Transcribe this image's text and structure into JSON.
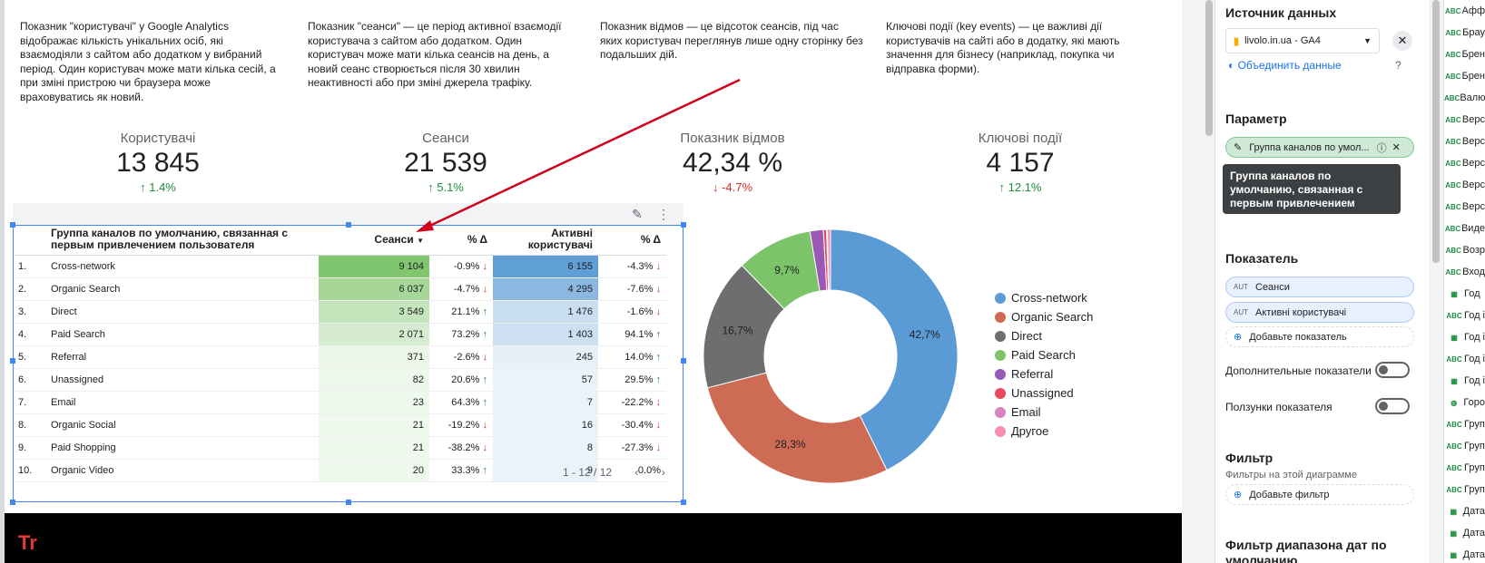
{
  "descriptions": [
    "Показник \"користувачі\" у Google Analytics відображає кількість унікальних осіб, які взаємодіяли з сайтом або додатком у вибраний період. Один користувач може мати кілька сесій, а при зміні пристрою чи браузера може враховуватись як новий.",
    "Показник \"сеанси\" — це період активної взаємодії користувача з сайтом або додатком. Один користувач може мати кілька сеансів на день, а новий сеанс створюється після 30 хвилин неактивності або при зміні джерела трафіку.",
    "Показник відмов — це відсоток сеансів, під час яких користувач переглянув лише одну сторінку без подальших дій.",
    "Ключові події (key events) — це важливі дії користувачів на сайті або в додатку, які мають значення для бізнесу (наприклад, покупка чи відправка форми)."
  ],
  "kpis": [
    {
      "label": "Користувачі",
      "value": "13 845",
      "delta": "1.4%",
      "dir": "up"
    },
    {
      "label": "Сеанси",
      "value": "21 539",
      "delta": "5.1%",
      "dir": "up"
    },
    {
      "label": "Показник відмов",
      "value": "42,34 %",
      "delta": "-4.7%",
      "dir": "down"
    },
    {
      "label": "Ключові події",
      "value": "4 157",
      "delta": "12.1%",
      "dir": "up"
    }
  ],
  "table": {
    "headers": [
      "Группа каналов по умолчанию, связанная с первым привлечением пользователя",
      "Сеанси",
      "% Δ",
      "Активні користувачі",
      "% Δ"
    ],
    "rows": [
      {
        "n": "1.",
        "channel": "Cross-network",
        "sessions": "9 104",
        "sd": "-0.9%",
        "sdir": "down",
        "users": "6 155",
        "ud": "-4.3%",
        "udir": "down",
        "s": 1.0,
        "u": 1.0
      },
      {
        "n": "2.",
        "channel": "Organic Search",
        "sessions": "6 037",
        "sd": "-4.7%",
        "sdir": "down",
        "users": "4 295",
        "ud": "-7.6%",
        "udir": "down",
        "s": 0.66,
        "u": 0.7
      },
      {
        "n": "3.",
        "channel": "Direct",
        "sessions": "3 549",
        "sd": "21.1%",
        "sdir": "up",
        "users": "1 476",
        "ud": "-1.6%",
        "udir": "down",
        "s": 0.39,
        "u": 0.24
      },
      {
        "n": "4.",
        "channel": "Paid Search",
        "sessions": "2 071",
        "sd": "73.2%",
        "sdir": "up",
        "users": "1 403",
        "ud": "94.1%",
        "udir": "up",
        "s": 0.23,
        "u": 0.23
      },
      {
        "n": "5.",
        "channel": "Referral",
        "sessions": "371",
        "sd": "-2.6%",
        "sdir": "down",
        "users": "245",
        "ud": "14.0%",
        "udir": "up",
        "s": 0.04,
        "u": 0.04
      },
      {
        "n": "6.",
        "channel": "Unassigned",
        "sessions": "82",
        "sd": "20.6%",
        "sdir": "up",
        "users": "57",
        "ud": "29.5%",
        "udir": "up",
        "s": 0.01,
        "u": 0.01
      },
      {
        "n": "7.",
        "channel": "Email",
        "sessions": "23",
        "sd": "64.3%",
        "sdir": "up",
        "users": "7",
        "ud": "-22.2%",
        "udir": "down",
        "s": 0.0,
        "u": 0.0
      },
      {
        "n": "8.",
        "channel": "Organic Social",
        "sessions": "21",
        "sd": "-19.2%",
        "sdir": "down",
        "users": "16",
        "ud": "-30.4%",
        "udir": "down",
        "s": 0.0,
        "u": 0.0
      },
      {
        "n": "9.",
        "channel": "Paid Shopping",
        "sessions": "21",
        "sd": "-38.2%",
        "sdir": "down",
        "users": "8",
        "ud": "-27.3%",
        "udir": "down",
        "s": 0.0,
        "u": 0.0
      },
      {
        "n": "10.",
        "channel": "Organic Video",
        "sessions": "20",
        "sd": "33.3%",
        "sdir": "up",
        "users": "9",
        "ud": "0.0%",
        "udir": "none",
        "s": 0.0,
        "u": 0.0
      }
    ],
    "pager": "1 - 12 / 12"
  },
  "chart_data": {
    "type": "pie",
    "categories": [
      "Cross-network",
      "Organic Search",
      "Direct",
      "Paid Search",
      "Referral",
      "Unassigned",
      "Email",
      "Другое"
    ],
    "values": [
      42.7,
      28.3,
      16.7,
      9.7,
      1.7,
      0.4,
      0.1,
      0.4
    ],
    "labels": [
      "42,7%",
      "28,3%",
      "16,7%",
      "9,7%",
      "",
      "",
      "",
      ""
    ],
    "colors": [
      "#5b9bd5",
      "#cd6b55",
      "#6e6e6e",
      "#7cc46a",
      "#9b59b6",
      "#e8495d",
      "#d982c0",
      "#f48fb1"
    ],
    "legend": "right"
  },
  "sidebar": {
    "data_source_title": "Источник данных",
    "data_source": "livolo.in.ua - GA4",
    "blend": "Объединить данные",
    "dimension_title": "Параметр",
    "dimension_chip": "Группа каналов по умол...",
    "tooltip": "Группа каналов по умолчанию, связанная с первым привлечением пользователя",
    "metric_title": "Показатель",
    "metric1": "Сеанси",
    "metric2": "Активні користувачі",
    "aut": "AUT",
    "add_metric": "Добавьте показатель",
    "extra_metrics": "Дополнительные показатели",
    "metric_sliders": "Ползунки показателя",
    "filter_title": "Фильтр",
    "filter_sub": "Фильтры на этой диаграмме",
    "add_filter": "Добавьте фильтр",
    "date_filter_title": "Фильтр диапазона дат по умолчанию"
  },
  "field_list": [
    {
      "icon": "ABC",
      "label": "Афф"
    },
    {
      "icon": "ABC",
      "label": "Брау"
    },
    {
      "icon": "ABC",
      "label": "Брен"
    },
    {
      "icon": "ABC",
      "label": "Брен"
    },
    {
      "icon": "ABC",
      "label": "Валю"
    },
    {
      "icon": "ABC",
      "label": "Верс"
    },
    {
      "icon": "ABC",
      "label": "Верс"
    },
    {
      "icon": "ABC",
      "label": "Верс"
    },
    {
      "icon": "ABC",
      "label": "Верс"
    },
    {
      "icon": "ABC",
      "label": "Верс"
    },
    {
      "icon": "ABC",
      "label": "Виде"
    },
    {
      "icon": "ABC",
      "label": "Возр"
    },
    {
      "icon": "ABC",
      "label": "Вход"
    },
    {
      "icon": "cal",
      "label": "Год"
    },
    {
      "icon": "ABC",
      "label": "Год і"
    },
    {
      "icon": "cal",
      "label": "Год і"
    },
    {
      "icon": "ABC",
      "label": "Год і"
    },
    {
      "icon": "cal",
      "label": "Год і"
    },
    {
      "icon": "globe",
      "label": "Горо"
    },
    {
      "icon": "ABC",
      "label": "Груп"
    },
    {
      "icon": "ABC",
      "label": "Груп"
    },
    {
      "icon": "ABC",
      "label": "Груп"
    },
    {
      "icon": "ABC",
      "label": "Груп"
    },
    {
      "icon": "cal",
      "label": "Дата"
    },
    {
      "icon": "cal",
      "label": "Дата"
    },
    {
      "icon": "cal",
      "label": "Дата"
    }
  ],
  "footer_text": "Tr"
}
